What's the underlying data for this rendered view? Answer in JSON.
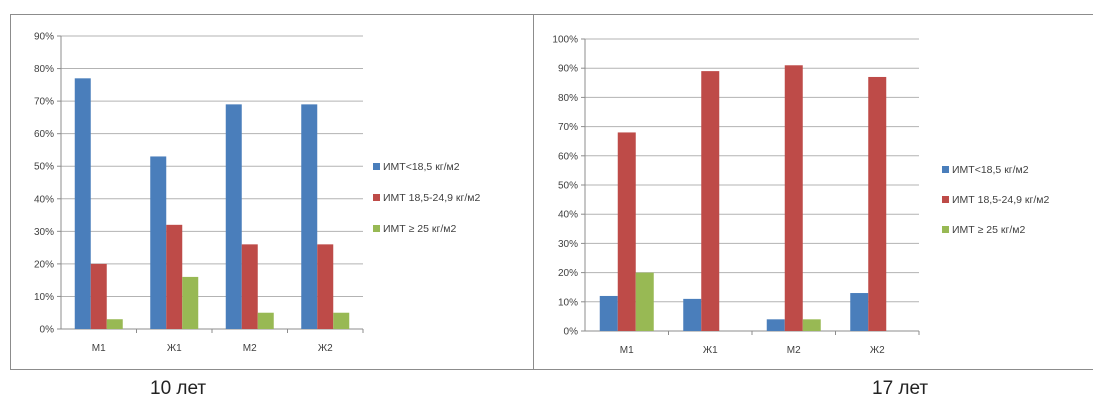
{
  "chart_data": [
    {
      "type": "bar",
      "caption": "10 лет",
      "categories": [
        "M1",
        "Ж1",
        "M2",
        "Ж2"
      ],
      "ylim": [
        0,
        90
      ],
      "yticks": [
        "0%",
        "10%",
        "20%",
        "30%",
        "40%",
        "50%",
        "60%",
        "70%",
        "80%",
        "90%"
      ],
      "grid": true,
      "legend_position": "right",
      "series": [
        {
          "name": "ИМТ<18,5 кг/м2",
          "color": "#4a7ebb",
          "values": [
            77,
            53,
            69,
            69
          ]
        },
        {
          "name": "ИМТ 18,5-24,9 кг/м2",
          "color": "#be4b48",
          "values": [
            20,
            32,
            26,
            26
          ]
        },
        {
          "name": "ИМТ ≥ 25 кг/м2",
          "color": "#98b954",
          "values": [
            3,
            16,
            5,
            5
          ]
        }
      ]
    },
    {
      "type": "bar",
      "caption": "17 лет",
      "categories": [
        "M1",
        "Ж1",
        "M2",
        "Ж2"
      ],
      "ylim": [
        0,
        100
      ],
      "yticks": [
        "0%",
        "10%",
        "20%",
        "30%",
        "40%",
        "50%",
        "60%",
        "70%",
        "80%",
        "90%",
        "100%"
      ],
      "grid": true,
      "legend_position": "right",
      "series": [
        {
          "name": "ИМТ<18,5 кг/м2",
          "color": "#4a7ebb",
          "values": [
            12,
            11,
            4,
            13
          ]
        },
        {
          "name": "ИМТ 18,5-24,9 кг/м2",
          "color": "#be4b48",
          "values": [
            68,
            89,
            91,
            87
          ]
        },
        {
          "name": "ИМТ ≥ 25 кг/м2",
          "color": "#98b954",
          "values": [
            20,
            0,
            4,
            0
          ]
        }
      ]
    }
  ]
}
